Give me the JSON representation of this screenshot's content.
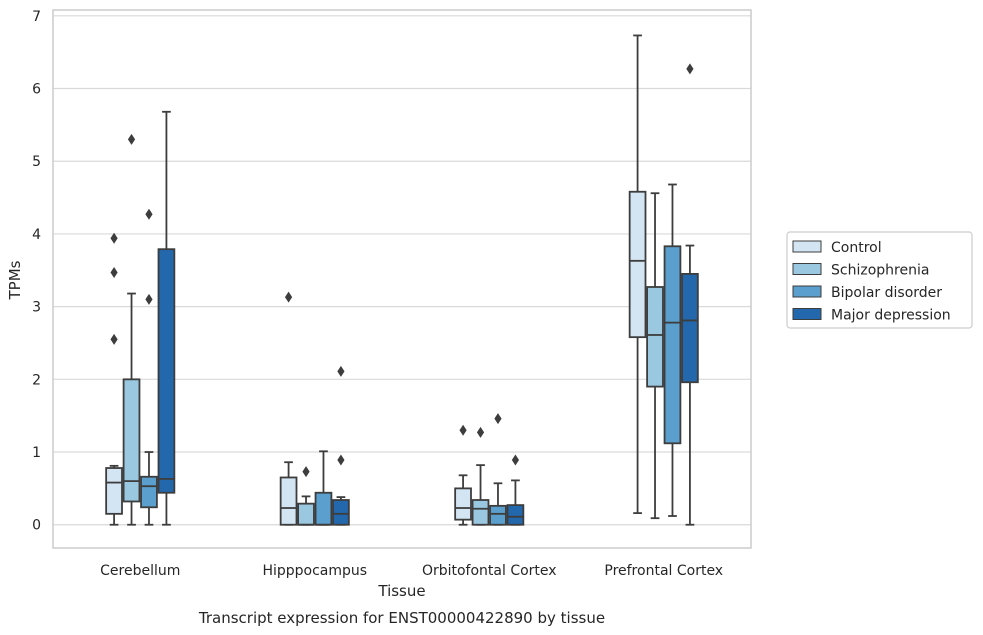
{
  "chart_data": {
    "type": "box",
    "xlabel": "Tissue",
    "ylabel": "TPMs",
    "caption": "Transcript expression for ENST00000422890 by tissue",
    "ylim": [
      -0.32,
      7.08
    ],
    "yticks": [
      0,
      1,
      2,
      3,
      4,
      5,
      6,
      7
    ],
    "grid": true,
    "legend_position": "right",
    "categories": [
      "Cerebellum",
      "Hipppocampus",
      "Orbitofontal Cortex",
      "Prefrontal Cortex"
    ],
    "series": [
      {
        "name": "Control",
        "color": "#d3e4f3",
        "boxes": [
          {
            "min": 0.0,
            "q1": 0.15,
            "median": 0.58,
            "q3": 0.78,
            "max": 0.81,
            "outliers": [
              2.55,
              3.47,
              3.94
            ]
          },
          {
            "min": 0.0,
            "q1": 0.0,
            "median": 0.23,
            "q3": 0.65,
            "max": 0.86,
            "outliers": [
              3.13
            ]
          },
          {
            "min": 0.0,
            "q1": 0.07,
            "median": 0.23,
            "q3": 0.5,
            "max": 0.68,
            "outliers": [
              1.3
            ]
          },
          {
            "min": 0.16,
            "q1": 2.58,
            "median": 3.63,
            "q3": 4.58,
            "max": 6.73,
            "outliers": []
          }
        ]
      },
      {
        "name": "Schizophrenia",
        "color": "#9ac8e0",
        "boxes": [
          {
            "min": 0.0,
            "q1": 0.32,
            "median": 0.6,
            "q3": 2.0,
            "max": 3.18,
            "outliers": [
              5.3
            ]
          },
          {
            "min": 0.0,
            "q1": 0.0,
            "median": 0.0,
            "q3": 0.29,
            "max": 0.39,
            "outliers": [
              0.73
            ]
          },
          {
            "min": 0.0,
            "q1": 0.0,
            "median": 0.22,
            "q3": 0.34,
            "max": 0.82,
            "outliers": [
              1.27
            ]
          },
          {
            "min": 0.09,
            "q1": 1.9,
            "median": 2.61,
            "q3": 3.27,
            "max": 4.56,
            "outliers": []
          }
        ]
      },
      {
        "name": "Bipolar disorder",
        "color": "#5a9fcd",
        "boxes": [
          {
            "min": 0.0,
            "q1": 0.24,
            "median": 0.53,
            "q3": 0.66,
            "max": 1.0,
            "outliers": [
              3.1,
              4.27
            ]
          },
          {
            "min": 0.0,
            "q1": 0.0,
            "median": 0.0,
            "q3": 0.44,
            "max": 1.01,
            "outliers": []
          },
          {
            "min": 0.0,
            "q1": 0.0,
            "median": 0.15,
            "q3": 0.26,
            "max": 0.57,
            "outliers": [
              1.46
            ]
          },
          {
            "min": 0.12,
            "q1": 1.12,
            "median": 2.78,
            "q3": 3.83,
            "max": 4.68,
            "outliers": []
          }
        ]
      },
      {
        "name": "Major depression",
        "color": "#2367ac",
        "boxes": [
          {
            "min": 0.0,
            "q1": 0.44,
            "median": 0.63,
            "q3": 3.79,
            "max": 5.68,
            "outliers": []
          },
          {
            "min": 0.0,
            "q1": 0.0,
            "median": 0.15,
            "q3": 0.34,
            "max": 0.38,
            "outliers": [
              0.89,
              2.11
            ]
          },
          {
            "min": 0.0,
            "q1": 0.0,
            "median": 0.11,
            "q3": 0.27,
            "max": 0.61,
            "outliers": [
              0.89
            ]
          },
          {
            "min": 0.0,
            "q1": 1.96,
            "median": 2.81,
            "q3": 3.45,
            "max": 3.84,
            "outliers": [
              6.27
            ]
          }
        ]
      }
    ]
  }
}
